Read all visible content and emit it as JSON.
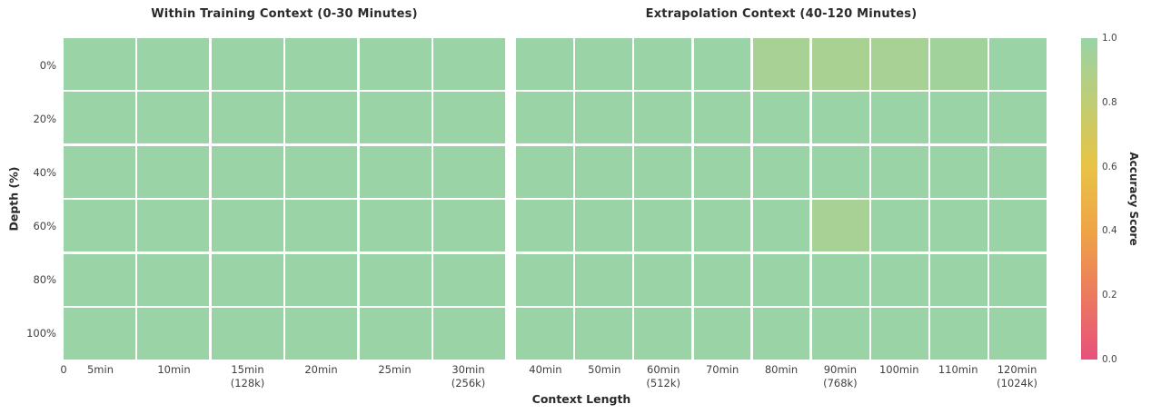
{
  "chart_data": {
    "type": "heatmap",
    "xlabel": "Context Length",
    "ylabel": "Depth (%)",
    "depth_categories": [
      "0%",
      "20%",
      "40%",
      "60%",
      "80%",
      "100%"
    ],
    "colorbar": {
      "label": "Accuracy Score",
      "tick_labels": [
        "1.0",
        "0.8",
        "0.6",
        "0.4",
        "0.2",
        "0.0"
      ],
      "tick_values": [
        1.0,
        0.8,
        0.6,
        0.4,
        0.2,
        0.0
      ],
      "range": [
        0.0,
        1.0
      ],
      "colormap_stops": [
        {
          "value": 0.0,
          "color": "#e8507c"
        },
        {
          "value": 0.2,
          "color": "#ec7a5e"
        },
        {
          "value": 0.4,
          "color": "#efa447"
        },
        {
          "value": 0.6,
          "color": "#e8c345"
        },
        {
          "value": 0.8,
          "color": "#c0cd74"
        },
        {
          "value": 1.0,
          "color": "#99d3a6"
        }
      ]
    },
    "grid_line_color": "#ffffff",
    "panels": [
      {
        "title": "Within Training Context (0-30 Minutes)",
        "origin_tick": "0",
        "x_categories": [
          [
            "5min"
          ],
          [
            "10min"
          ],
          [
            "15min",
            "(128k)"
          ],
          [
            "20min"
          ],
          [
            "25min"
          ],
          [
            "30min",
            "(256k)"
          ]
        ],
        "values": [
          [
            1.0,
            1.0,
            1.0,
            1.0,
            1.0,
            1.0
          ],
          [
            1.0,
            1.0,
            1.0,
            1.0,
            1.0,
            1.0
          ],
          [
            1.0,
            1.0,
            1.0,
            1.0,
            1.0,
            1.0
          ],
          [
            1.0,
            1.0,
            1.0,
            1.0,
            1.0,
            1.0
          ],
          [
            1.0,
            1.0,
            1.0,
            1.0,
            1.0,
            1.0
          ],
          [
            1.0,
            1.0,
            1.0,
            1.0,
            1.0,
            1.0
          ]
        ]
      },
      {
        "title": "Extrapolation Context (40-120 Minutes)",
        "x_categories": [
          [
            "40min"
          ],
          [
            "50min"
          ],
          [
            "60min",
            "(512k)"
          ],
          [
            "70min"
          ],
          [
            "80min"
          ],
          [
            "90min",
            "(768k)"
          ],
          [
            "100min"
          ],
          [
            "110min"
          ],
          [
            "120min",
            "(1024k)"
          ]
        ],
        "values": [
          [
            1.0,
            1.0,
            1.0,
            1.0,
            0.93,
            0.92,
            0.93,
            0.96,
            1.0
          ],
          [
            1.0,
            1.0,
            1.0,
            1.0,
            1.0,
            1.0,
            1.0,
            1.0,
            1.0
          ],
          [
            1.0,
            1.0,
            1.0,
            1.0,
            1.0,
            1.0,
            1.0,
            1.0,
            1.0
          ],
          [
            1.0,
            1.0,
            1.0,
            1.0,
            1.0,
            0.93,
            1.0,
            1.0,
            1.0
          ],
          [
            1.0,
            1.0,
            1.0,
            1.0,
            1.0,
            1.0,
            1.0,
            1.0,
            1.0
          ],
          [
            1.0,
            1.0,
            1.0,
            1.0,
            1.0,
            1.0,
            1.0,
            1.0,
            1.0
          ]
        ]
      }
    ]
  }
}
